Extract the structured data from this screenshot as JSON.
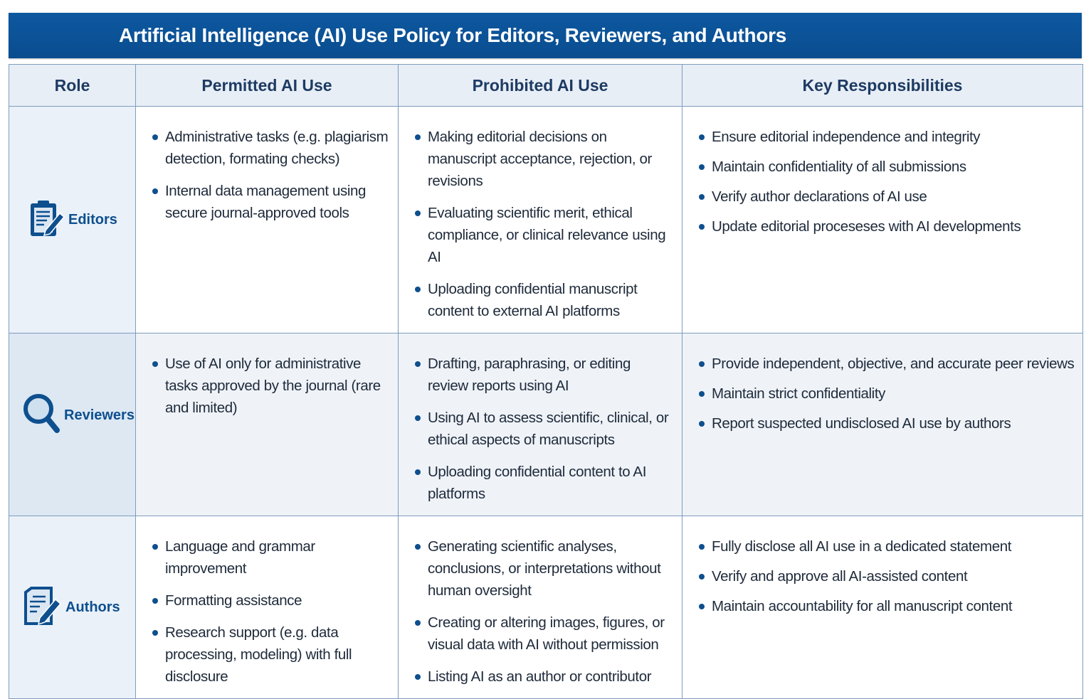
{
  "title": "Artificial Intelligence (AI) Use Policy for Editors, Reviewers, and Authors",
  "headers": [
    "Role",
    "Permitted AI Use",
    "Prohibited AI Use",
    "Key Responsibilities"
  ],
  "colors": {
    "brand": "#0a4d8f",
    "header_bg": "#e8eef6",
    "border": "#7f9bbd"
  },
  "rows": [
    {
      "role": "Editors",
      "icon": "clipboard-pencil-icon",
      "permitted": [
        "Administrative tasks (e.g. plagiarism detection, formating checks)",
        "Internal data management using secure journal-approved tools"
      ],
      "prohibited": [
        "Making editorial decisions on manuscript acceptance, rejection, or revisions",
        "Evaluating scientific merit, ethical compliance, or clinical relevance using AI",
        "Uploading confidential manuscript content to external AI platforms"
      ],
      "responsibilities": [
        "Ensure editorial independence and integrity",
        "Maintain confidentiality of all submissions",
        "Verify author declarations of AI use",
        "Update editorial proceseses with AI developments"
      ]
    },
    {
      "role": "Reviewers",
      "icon": "magnifying-glass-icon",
      "permitted": [
        "Use of AI only for administrative tasks approved by the journal (rare and limited)"
      ],
      "prohibited": [
        "Drafting, paraphrasing, or editing review reports using AI",
        "Using AI to assess scientific, clinical, or ethical aspects of manuscripts",
        "Uploading confidential content to AI platforms"
      ],
      "responsibilities": [
        "Provide independent, objective, and accurate peer reviews",
        "Maintain strict confidentiality",
        "Report suspected undisclosed AI use by authors"
      ]
    },
    {
      "role": "Authors",
      "icon": "document-pencil-icon",
      "permitted": [
        "Language and grammar improvement",
        "Formatting assistance",
        "Research support (e.g. data processing, modeling) with full disclosure"
      ],
      "prohibited": [
        "Generating scientific analyses, conclusions, or interpretations without human oversight",
        "Creating or altering images, figures, or visual data with AI without permission",
        "Listing AI as an author or contributor"
      ],
      "responsibilities": [
        "Fully disclose all AI use in a dedicated statement",
        "Verify and approve all AI-assisted content",
        "Maintain accountability for all manuscript content"
      ]
    }
  ]
}
